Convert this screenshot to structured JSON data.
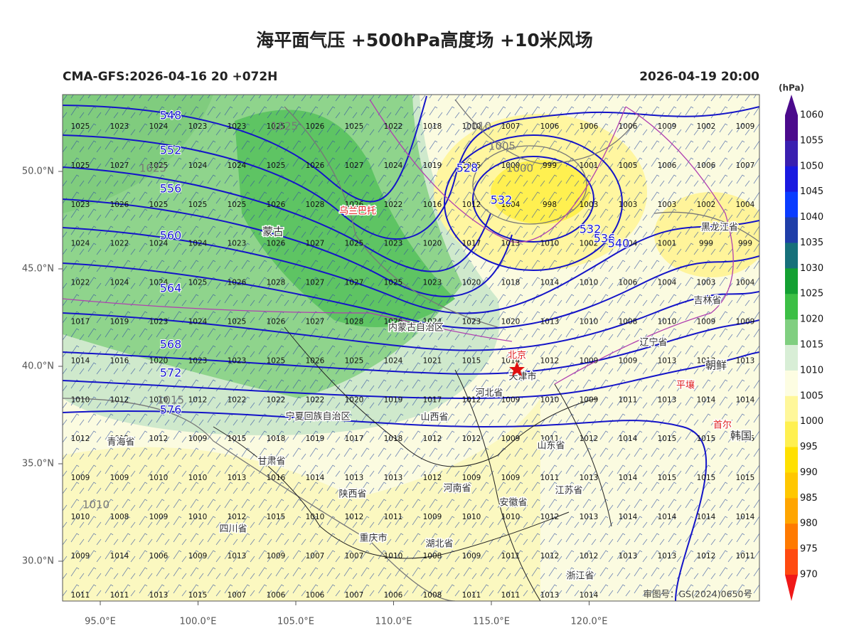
{
  "title": "海平面气压 +500hPa高度场 +10米风场",
  "left_label": "CMA-GFS:2026-04-16 20 +072H",
  "right_label": "2026-04-19 20:00",
  "x_axis": [
    "95.0°E",
    "100.0°E",
    "105.0°E",
    "110.0°E",
    "115.0°E",
    "120.0°E"
  ],
  "y_axis": [
    "50.0°N",
    "45.0°N",
    "40.0°N",
    "35.0°N",
    "30.0°N"
  ],
  "colorbar": {
    "unit": "(hPa)",
    "levels": [
      1060,
      1055,
      1050,
      1045,
      1040,
      1035,
      1030,
      1025,
      1020,
      1015,
      1010,
      1005,
      1000,
      995,
      990,
      985,
      980,
      975,
      970
    ],
    "colors": [
      "#4b0a8c",
      "#3a1fb0",
      "#1a1ae0",
      "#0a3cff",
      "#1f3ea8",
      "#16707a",
      "#13a032",
      "#3cbf45",
      "#80cf80",
      "#d8eed6",
      "#fdfde2",
      "#fff79a",
      "#fff050",
      "#ffe000",
      "#ffc700",
      "#ffa500",
      "#ff7a00",
      "#ff4a10",
      "#f01818"
    ]
  },
  "pressure_grid": [
    [
      1025,
      1023,
      1024,
      1023,
      1023,
      1025,
      1026,
      1025,
      1022,
      1018,
      1010,
      1007,
      1006,
      1006,
      1006,
      1009,
      1002,
      1009
    ],
    [
      1025,
      1027,
      1025,
      1024,
      1024,
      1025,
      1026,
      1027,
      1024,
      1019,
      1005,
      1000,
      999,
      1001,
      1005,
      1006,
      1006,
      1007
    ],
    [
      1023,
      1026,
      1025,
      1025,
      1025,
      1026,
      1028,
      1026,
      1022,
      1016,
      1012,
      1004,
      998,
      1003,
      1003,
      1003,
      1002,
      1004
    ],
    [
      1024,
      1022,
      1024,
      1024,
      1023,
      1026,
      1027,
      1025,
      1023,
      1020,
      1017,
      1013,
      1010,
      1002,
      1004,
      1001,
      999,
      999
    ],
    [
      1022,
      1024,
      1024,
      1025,
      1026,
      1028,
      1027,
      1027,
      1025,
      1023,
      1020,
      1018,
      1014,
      1010,
      1006,
      1004,
      1003,
      1004
    ],
    [
      1017,
      1019,
      1023,
      1024,
      1025,
      1026,
      1027,
      1028,
      1026,
      1024,
      1023,
      1020,
      1013,
      1010,
      1008,
      1010,
      1009,
      1009
    ],
    [
      1014,
      1016,
      1020,
      1023,
      1023,
      1025,
      1026,
      1025,
      1024,
      1021,
      1015,
      1014,
      1012,
      1009,
      1009,
      1013,
      1013,
      1013
    ],
    [
      1010,
      1012,
      1010,
      1012,
      1022,
      1022,
      1022,
      1020,
      1019,
      1017,
      1012,
      1009,
      1010,
      1009,
      1011,
      1013,
      1014,
      1014
    ],
    [
      1012,
      1012,
      1012,
      1009,
      1015,
      1018,
      1019,
      1017,
      1018,
      1012,
      1012,
      1009,
      1011,
      1012,
      1014,
      1015,
      1015,
      1015
    ],
    [
      1009,
      1009,
      1010,
      1010,
      1013,
      1016,
      1014,
      1013,
      1013,
      1012,
      1009,
      1009,
      1011,
      1013,
      1014,
      1015,
      1015,
      1015
    ],
    [
      1010,
      1008,
      1009,
      1010,
      1012,
      1015,
      1010,
      1012,
      1011,
      1009,
      1010,
      1010,
      1012,
      1013,
      1014,
      1014,
      1014,
      1014
    ],
    [
      1009,
      1014,
      1006,
      1009,
      1013,
      1009,
      1007,
      1007,
      1010,
      1008,
      1009,
      1011,
      1012,
      1012,
      1013,
      1013,
      1012,
      1011
    ],
    [
      1011,
      1011,
      1013,
      1015,
      1007,
      1006,
      1006,
      1007,
      1006,
      1008,
      1011,
      1011,
      1013,
      1014
    ]
  ],
  "places": [
    "蒙古",
    "乌兰巴托",
    "内蒙古自治区",
    "北京",
    "天津市",
    "河北省",
    "山西省",
    "宁夏回族自治区",
    "甘肃省",
    "陕西省",
    "河南省",
    "山东省",
    "安徽省",
    "江苏省",
    "四川省",
    "重庆市",
    "湖北省",
    "浙江省",
    "青海省",
    "辽宁省",
    "吉林省",
    "黑龙江省",
    "朝鲜",
    "平壤",
    "首尔",
    "韩国"
  ],
  "height_labels": [
    548,
    552,
    556,
    560,
    564,
    568,
    572,
    576,
    528,
    532,
    532,
    536,
    540
  ],
  "isobar_labels": [
    1025,
    1010,
    1005,
    1000,
    1025,
    1015,
    1010
  ],
  "attribution": "审图号：GS(2024)0650号"
}
